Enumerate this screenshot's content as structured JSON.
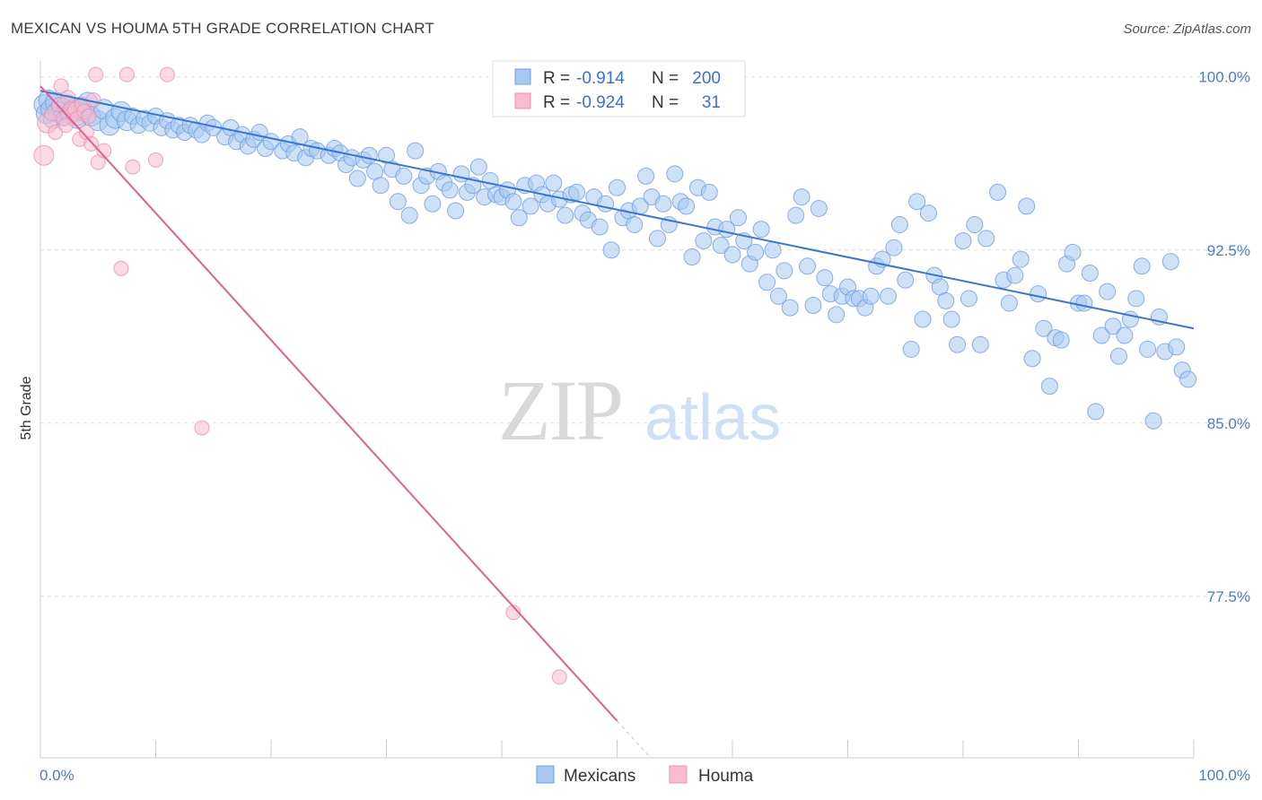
{
  "title": "MEXICAN VS HOUMA 5TH GRADE CORRELATION CHART",
  "source": "Source: ZipAtlas.com",
  "colors": {
    "mexicans_fill": "#a8c8f0",
    "mexicans_stroke": "#6d9ee0",
    "mexicans_line": "#3a76cf",
    "houma_fill": "#f7bcd0",
    "houma_stroke": "#ec8fb0",
    "houma_line": "#e0608e",
    "tick_text": "#4a7cc9",
    "grid": "#dddddd"
  },
  "legend_top": {
    "rows": [
      {
        "r_label": "R =",
        "r_value": "-0.914",
        "n_label": "N =",
        "n_value": "200"
      },
      {
        "r_label": "R =",
        "r_value": "-0.924",
        "n_label": "N =",
        "n_value": "31"
      }
    ]
  },
  "legend_bottom": [
    "Mexicans",
    "Houma"
  ],
  "chart_data": {
    "type": "scatter",
    "xlabel": "",
    "ylabel": "5th Grade",
    "xlim": [
      0,
      100
    ],
    "ylim": [
      70.5,
      101
    ],
    "x_tick_labels": [
      "0.0%",
      "100.0%"
    ],
    "y_ticks": [
      100.0,
      92.5,
      85.0,
      77.5
    ],
    "y_tick_labels": [
      "100.0%",
      "92.5%",
      "85.0%",
      "77.5%"
    ],
    "watermark": "ZIPatlas",
    "series": [
      {
        "name": "Mexicans",
        "trend": {
          "x": [
            0,
            100
          ],
          "y": [
            99.4,
            89.1
          ]
        },
        "points": [
          [
            0.3,
            98.8
          ],
          [
            0.5,
            98.4
          ],
          [
            0.7,
            99.0
          ],
          [
            0.9,
            98.6
          ],
          [
            1.1,
            98.2
          ],
          [
            1.3,
            98.9
          ],
          [
            1.5,
            98.5
          ],
          [
            1.8,
            98.7
          ],
          [
            2.0,
            98.3
          ],
          [
            2.3,
            98.8
          ],
          [
            2.6,
            98.4
          ],
          [
            2.9,
            98.6
          ],
          [
            3.2,
            98.2
          ],
          [
            3.5,
            98.7
          ],
          [
            3.8,
            98.5
          ],
          [
            4.1,
            98.9
          ],
          [
            4.4,
            98.3
          ],
          [
            5.0,
            98.1
          ],
          [
            5.5,
            98.6
          ],
          [
            6.0,
            97.9
          ],
          [
            6.5,
            98.2
          ],
          [
            7.0,
            98.5
          ],
          [
            7.5,
            98.1
          ],
          [
            8.0,
            98.3
          ],
          [
            8.5,
            97.9
          ],
          [
            9.0,
            98.2
          ],
          [
            9.5,
            98.0
          ],
          [
            10.0,
            98.3
          ],
          [
            10.5,
            97.8
          ],
          [
            11.0,
            98.1
          ],
          [
            11.5,
            97.7
          ],
          [
            12.0,
            97.9
          ],
          [
            12.5,
            97.6
          ],
          [
            13.0,
            97.9
          ],
          [
            13.5,
            97.7
          ],
          [
            14.0,
            97.5
          ],
          [
            14.5,
            98.0
          ],
          [
            15.0,
            97.8
          ],
          [
            16.0,
            97.4
          ],
          [
            16.5,
            97.8
          ],
          [
            17.0,
            97.2
          ],
          [
            17.5,
            97.5
          ],
          [
            18.0,
            97.0
          ],
          [
            18.5,
            97.3
          ],
          [
            19.0,
            97.6
          ],
          [
            19.5,
            96.9
          ],
          [
            20.0,
            97.2
          ],
          [
            21.0,
            96.8
          ],
          [
            21.5,
            97.1
          ],
          [
            22.0,
            96.7
          ],
          [
            22.5,
            97.4
          ],
          [
            23.0,
            96.5
          ],
          [
            23.5,
            96.9
          ],
          [
            24.0,
            96.8
          ],
          [
            25.0,
            96.6
          ],
          [
            25.5,
            96.9
          ],
          [
            26.0,
            96.7
          ],
          [
            26.5,
            96.2
          ],
          [
            27.0,
            96.5
          ],
          [
            27.5,
            95.6
          ],
          [
            28.0,
            96.4
          ],
          [
            28.5,
            96.6
          ],
          [
            29.0,
            95.9
          ],
          [
            29.5,
            95.3
          ],
          [
            30.0,
            96.6
          ],
          [
            30.5,
            96.0
          ],
          [
            31.0,
            94.6
          ],
          [
            31.5,
            95.7
          ],
          [
            32.0,
            94.0
          ],
          [
            32.5,
            96.8
          ],
          [
            33.0,
            95.3
          ],
          [
            33.5,
            95.7
          ],
          [
            34.0,
            94.5
          ],
          [
            34.5,
            95.9
          ],
          [
            35.0,
            95.4
          ],
          [
            35.5,
            95.1
          ],
          [
            36.0,
            94.2
          ],
          [
            36.5,
            95.8
          ],
          [
            37.0,
            95.0
          ],
          [
            37.5,
            95.3
          ],
          [
            38.0,
            96.1
          ],
          [
            38.5,
            94.8
          ],
          [
            39.0,
            95.5
          ],
          [
            39.5,
            94.9
          ],
          [
            40.0,
            94.8
          ],
          [
            40.5,
            95.1
          ],
          [
            41.0,
            94.6
          ],
          [
            41.5,
            93.9
          ],
          [
            42.0,
            95.3
          ],
          [
            42.5,
            94.4
          ],
          [
            43.0,
            95.4
          ],
          [
            43.5,
            94.9
          ],
          [
            44.0,
            94.5
          ],
          [
            44.5,
            95.4
          ],
          [
            45.0,
            94.7
          ],
          [
            45.5,
            94.0
          ],
          [
            46.0,
            94.9
          ],
          [
            46.5,
            95.0
          ],
          [
            47.0,
            94.1
          ],
          [
            47.5,
            93.8
          ],
          [
            48.0,
            94.8
          ],
          [
            48.5,
            93.5
          ],
          [
            49.0,
            94.5
          ],
          [
            49.5,
            92.5
          ],
          [
            50.0,
            95.2
          ],
          [
            50.5,
            93.9
          ],
          [
            51.0,
            94.2
          ],
          [
            51.5,
            93.6
          ],
          [
            52.0,
            94.4
          ],
          [
            52.5,
            95.7
          ],
          [
            53.0,
            94.8
          ],
          [
            53.5,
            93.0
          ],
          [
            54.0,
            94.5
          ],
          [
            54.5,
            93.6
          ],
          [
            55.0,
            95.8
          ],
          [
            55.5,
            94.6
          ],
          [
            56.0,
            94.4
          ],
          [
            56.5,
            92.2
          ],
          [
            57.0,
            95.2
          ],
          [
            57.5,
            92.9
          ],
          [
            58.0,
            95.0
          ],
          [
            58.5,
            93.5
          ],
          [
            59.0,
            92.7
          ],
          [
            59.5,
            93.4
          ],
          [
            60.0,
            92.3
          ],
          [
            60.5,
            93.9
          ],
          [
            61.0,
            92.9
          ],
          [
            61.5,
            91.9
          ],
          [
            62.0,
            92.4
          ],
          [
            62.5,
            93.4
          ],
          [
            63.0,
            91.1
          ],
          [
            63.5,
            92.5
          ],
          [
            64.0,
            90.5
          ],
          [
            64.5,
            91.6
          ],
          [
            65.0,
            90.0
          ],
          [
            65.5,
            94.0
          ],
          [
            66.0,
            94.8
          ],
          [
            66.5,
            91.8
          ],
          [
            67.0,
            90.1
          ],
          [
            67.5,
            94.3
          ],
          [
            68.0,
            91.3
          ],
          [
            68.5,
            90.6
          ],
          [
            69.0,
            89.7
          ],
          [
            69.5,
            90.5
          ],
          [
            70.0,
            90.9
          ],
          [
            70.5,
            90.4
          ],
          [
            71.0,
            90.4
          ],
          [
            71.5,
            90.0
          ],
          [
            72.0,
            90.5
          ],
          [
            72.5,
            91.8
          ],
          [
            73.0,
            92.1
          ],
          [
            73.5,
            90.5
          ],
          [
            74.0,
            92.6
          ],
          [
            74.5,
            93.6
          ],
          [
            75.0,
            91.2
          ],
          [
            75.5,
            88.2
          ],
          [
            76.0,
            94.6
          ],
          [
            76.5,
            89.5
          ],
          [
            77.0,
            94.1
          ],
          [
            77.5,
            91.4
          ],
          [
            78.0,
            90.9
          ],
          [
            78.5,
            90.3
          ],
          [
            79.0,
            89.5
          ],
          [
            79.5,
            88.4
          ],
          [
            80.0,
            92.9
          ],
          [
            80.5,
            90.4
          ],
          [
            81.0,
            93.6
          ],
          [
            81.5,
            88.4
          ],
          [
            82.0,
            93.0
          ],
          [
            83.0,
            95.0
          ],
          [
            83.5,
            91.2
          ],
          [
            84.0,
            90.2
          ],
          [
            84.5,
            91.4
          ],
          [
            85.0,
            92.1
          ],
          [
            85.5,
            94.4
          ],
          [
            86.0,
            87.8
          ],
          [
            86.5,
            90.6
          ],
          [
            87.0,
            89.1
          ],
          [
            87.5,
            86.6
          ],
          [
            88.0,
            88.7
          ],
          [
            88.5,
            88.6
          ],
          [
            89.0,
            91.9
          ],
          [
            89.5,
            92.4
          ],
          [
            90.0,
            90.2
          ],
          [
            90.5,
            90.2
          ],
          [
            91.0,
            91.5
          ],
          [
            91.5,
            85.5
          ],
          [
            92.0,
            88.8
          ],
          [
            92.5,
            90.7
          ],
          [
            93.0,
            89.2
          ],
          [
            93.5,
            87.9
          ],
          [
            94.0,
            88.8
          ],
          [
            94.5,
            89.5
          ],
          [
            95.0,
            90.4
          ],
          [
            95.5,
            91.8
          ],
          [
            96.0,
            88.2
          ],
          [
            96.5,
            85.1
          ],
          [
            97.0,
            89.6
          ],
          [
            97.5,
            88.1
          ],
          [
            98.0,
            92.0
          ],
          [
            98.5,
            88.3
          ],
          [
            99.0,
            87.3
          ],
          [
            99.5,
            86.9
          ]
        ]
      },
      {
        "name": "Houma",
        "trend": {
          "x": [
            0,
            50
          ],
          "y": [
            99.6,
            72.1
          ]
        },
        "points": [
          [
            0.3,
            96.6
          ],
          [
            0.6,
            98.0
          ],
          [
            1.0,
            98.4
          ],
          [
            1.3,
            97.6
          ],
          [
            1.6,
            98.8
          ],
          [
            1.8,
            99.6
          ],
          [
            2.0,
            98.2
          ],
          [
            2.2,
            97.9
          ],
          [
            2.4,
            99.1
          ],
          [
            2.6,
            98.6
          ],
          [
            2.8,
            98.4
          ],
          [
            3.0,
            98.6
          ],
          [
            3.2,
            98.2
          ],
          [
            3.4,
            97.3
          ],
          [
            3.6,
            98.8
          ],
          [
            3.8,
            98.5
          ],
          [
            4.0,
            97.6
          ],
          [
            4.2,
            98.3
          ],
          [
            4.4,
            97.1
          ],
          [
            4.6,
            99.0
          ],
          [
            4.8,
            100.1
          ],
          [
            5.0,
            96.3
          ],
          [
            5.5,
            96.8
          ],
          [
            7.5,
            100.1
          ],
          [
            8.0,
            96.1
          ],
          [
            7.0,
            91.7
          ],
          [
            10.0,
            96.4
          ],
          [
            11.0,
            100.1
          ],
          [
            14.0,
            84.8
          ],
          [
            41.0,
            76.8
          ],
          [
            45.0,
            74.0
          ]
        ]
      }
    ]
  }
}
